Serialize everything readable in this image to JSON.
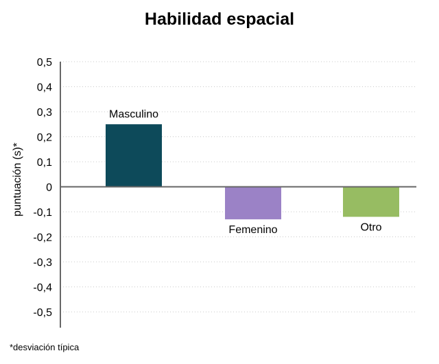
{
  "chart_data": {
    "type": "bar",
    "title": "Habilidad espacial",
    "ylabel": "puntuación (s)*",
    "xlabel": "",
    "categories": [
      "Masculino",
      "Femenino",
      "Otro"
    ],
    "values": [
      0.25,
      -0.13,
      -0.12
    ],
    "colors": [
      "#0d4a5a",
      "#9b82c6",
      "#97bc62"
    ],
    "ylim": [
      -0.5,
      0.5
    ],
    "yticks": [
      0.5,
      0.4,
      0.3,
      0.2,
      0.1,
      0,
      -0.1,
      -0.2,
      -0.3,
      -0.4,
      -0.5
    ],
    "ytick_labels": [
      "0,5",
      "0,4",
      "0,3",
      "0,2",
      "0,1",
      "0",
      "-0,1",
      "-0,2",
      "-0,3",
      "-0,4",
      "-0,5"
    ],
    "grid": "dotted horizontal",
    "legend": "none"
  },
  "footnote": "*desviación típica"
}
